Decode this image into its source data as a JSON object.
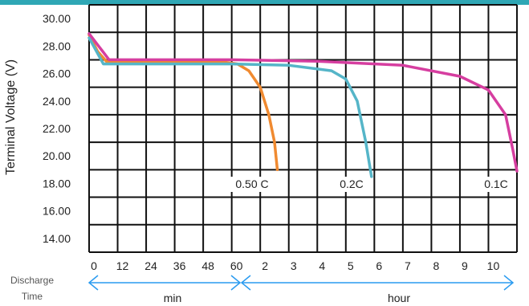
{
  "chart_data": {
    "type": "line",
    "ylabel": "Terminal Voltage (V)",
    "ylim": [
      13,
      31
    ],
    "y_ticks": [
      "30.00",
      "28.00",
      "26.00",
      "24.00",
      "22.00",
      "20.00",
      "18.00",
      "16.00",
      "14.00"
    ],
    "x_row_label": [
      "Discharge",
      "Time"
    ],
    "x_ticks": [
      "0",
      "12",
      "24",
      "36",
      "48",
      "60",
      "2",
      "3",
      "4",
      "5",
      "6",
      "7",
      "8",
      "9",
      "10"
    ],
    "ranges": {
      "min": "min",
      "hour": "hour"
    },
    "grid": true,
    "series": [
      {
        "name": "0.50 C",
        "color": "#f08a30",
        "points": [
          [
            0.0,
            28.8
          ],
          [
            0.3,
            27.6
          ],
          [
            0.6,
            26.9
          ],
          [
            1.5,
            26.9
          ],
          [
            3.0,
            26.9
          ],
          [
            4.5,
            26.9
          ],
          [
            5.2,
            26.7
          ],
          [
            5.6,
            26.2
          ],
          [
            6.0,
            25.0
          ],
          [
            6.3,
            23.0
          ],
          [
            6.5,
            21.0
          ],
          [
            6.6,
            19.0
          ]
        ]
      },
      {
        "name": "0.2C",
        "color": "#55b5c8",
        "points": [
          [
            0.0,
            28.6
          ],
          [
            0.5,
            26.7
          ],
          [
            3.0,
            26.7
          ],
          [
            5.0,
            26.7
          ],
          [
            7.0,
            26.6
          ],
          [
            8.5,
            26.2
          ],
          [
            9.0,
            25.6
          ],
          [
            9.4,
            24.0
          ],
          [
            9.7,
            21.0
          ],
          [
            9.9,
            18.5
          ]
        ]
      },
      {
        "name": "0.1C",
        "color": "#d63ea0",
        "points": [
          [
            0.0,
            28.9
          ],
          [
            0.7,
            27.0
          ],
          [
            5.0,
            27.0
          ],
          [
            8.0,
            26.9
          ],
          [
            11.0,
            26.6
          ],
          [
            13.0,
            25.8
          ],
          [
            14.0,
            24.8
          ],
          [
            14.6,
            23.0
          ],
          [
            14.85,
            20.5
          ],
          [
            15.0,
            18.9
          ]
        ]
      }
    ]
  }
}
